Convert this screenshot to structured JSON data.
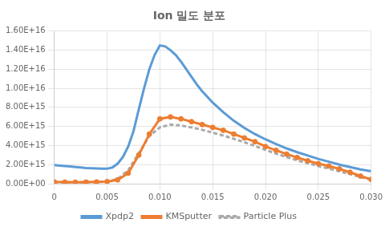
{
  "chart_data": {
    "type": "line",
    "title": "Ion 밀도 분포",
    "xlim": [
      0,
      0.03
    ],
    "ylim": [
      0,
      1.6e+16
    ],
    "xticks": [
      0,
      0.005,
      {
        "value": 0.01,
        "label": "0.010"
      },
      0.015,
      {
        "value": 0.02,
        "label": "0.020"
      },
      0.025,
      {
        "value": 0.03,
        "label": "0.030"
      }
    ],
    "yticks": [
      {
        "value": 0,
        "label": "0.00E+00"
      },
      {
        "value": 2000000000000000.0,
        "label": "2.00E+15"
      },
      {
        "value": 4000000000000000.0,
        "label": "4.00E+15"
      },
      {
        "value": 6000000000000000.0,
        "label": "6.00E+15"
      },
      {
        "value": 8000000000000000.0,
        "label": "8.00E+15"
      },
      {
        "value": 1e+16,
        "label": "1.00E+16"
      },
      {
        "value": 1.2e+16,
        "label": "1.20E+16"
      },
      {
        "value": 1.4e+16,
        "label": "1.40E+16"
      },
      {
        "value": 1.6e+16,
        "label": "1.60E+16"
      }
    ],
    "grid": true,
    "legend": "bottom",
    "series": [
      {
        "name": "Xpdp2",
        "color": "#5b9bd5",
        "marker": "none",
        "line_style": "solid",
        "x": [
          0,
          0.0005,
          0.001,
          0.0015,
          0.002,
          0.0025,
          0.003,
          0.0035,
          0.004,
          0.0045,
          0.005,
          0.0055,
          0.006,
          0.0065,
          0.007,
          0.0075,
          0.008,
          0.0085,
          0.009,
          0.0095,
          0.01,
          0.0105,
          0.011,
          0.0115,
          0.012,
          0.0125,
          0.013,
          0.0135,
          0.014,
          0.0145,
          0.015,
          0.016,
          0.017,
          0.018,
          0.019,
          0.02,
          0.021,
          0.022,
          0.023,
          0.024,
          0.025,
          0.026,
          0.027,
          0.028,
          0.029,
          0.03
        ],
        "values": [
          1950000000000000.0,
          1900000000000000.0,
          1850000000000000.0,
          1800000000000000.0,
          1750000000000000.0,
          1700000000000000.0,
          1650000000000000.0,
          1620000000000000.0,
          1600000000000000.0,
          1580000000000000.0,
          1570000000000000.0,
          1700000000000000.0,
          2100000000000000.0,
          2800000000000000.0,
          3900000000000000.0,
          5500000000000000.0,
          7800000000000000.0,
          1e+16,
          1.2e+16,
          1.35e+16,
          1.45e+16,
          1.44e+16,
          1.4e+16,
          1.35e+16,
          1.28e+16,
          1.2e+16,
          1.12e+16,
          1.04e+16,
          9700000000000000.0,
          9100000000000000.0,
          8500000000000000.0,
          7500000000000000.0,
          6600000000000000.0,
          5850000000000000.0,
          5200000000000000.0,
          4650000000000000.0,
          4150000000000000.0,
          3700000000000000.0,
          3300000000000000.0,
          2950000000000000.0,
          2600000000000000.0,
          2300000000000000.0,
          2000000000000000.0,
          1750000000000000.0,
          1500000000000000.0,
          1300000000000000.0
        ]
      },
      {
        "name": "KMSputter",
        "color": "#ed7d31",
        "marker": "circle",
        "line_style": "solid",
        "x": [
          0,
          0.001,
          0.002,
          0.003,
          0.004,
          0.005,
          0.006,
          0.007,
          0.008,
          0.009,
          0.01,
          0.011,
          0.012,
          0.013,
          0.014,
          0.015,
          0.016,
          0.017,
          0.018,
          0.019,
          0.02,
          0.021,
          0.022,
          0.023,
          0.024,
          0.025,
          0.026,
          0.027,
          0.028,
          0.029,
          0.03
        ],
        "values": [
          180000000000000.0,
          160000000000000.0,
          150000000000000.0,
          160000000000000.0,
          180000000000000.0,
          220000000000000.0,
          400000000000000.0,
          1100000000000000.0,
          3000000000000000.0,
          5200000000000000.0,
          6800000000000000.0,
          7000000000000000.0,
          6800000000000000.0,
          6500000000000000.0,
          6200000000000000.0,
          5900000000000000.0,
          5600000000000000.0,
          5200000000000000.0,
          4800000000000000.0,
          4400000000000000.0,
          3900000000000000.0,
          3500000000000000.0,
          3100000000000000.0,
          2750000000000000.0,
          2400000000000000.0,
          2100000000000000.0,
          1850000000000000.0,
          1550000000000000.0,
          1200000000000000.0,
          800000000000000.0,
          450000000000000.0
        ]
      },
      {
        "name": "Particle Plus",
        "color": "#aaaaaa",
        "marker": "none",
        "line_style": "dashed",
        "x": [
          0,
          0.001,
          0.002,
          0.003,
          0.004,
          0.005,
          0.006,
          0.007,
          0.008,
          0.009,
          0.01,
          0.011,
          0.012,
          0.013,
          0.014,
          0.015,
          0.016,
          0.017,
          0.018,
          0.019,
          0.02,
          0.021,
          0.022,
          0.023,
          0.024,
          0.025,
          0.026,
          0.027,
          0.028,
          0.029,
          0.03
        ],
        "values": [
          150000000000000.0,
          140000000000000.0,
          140000000000000.0,
          150000000000000.0,
          170000000000000.0,
          220000000000000.0,
          500000000000000.0,
          1400000000000000.0,
          3200000000000000.0,
          5000000000000000.0,
          5900000000000000.0,
          6200000000000000.0,
          6100000000000000.0,
          5900000000000000.0,
          5650000000000000.0,
          5350000000000000.0,
          5050000000000000.0,
          4700000000000000.0,
          4350000000000000.0,
          3950000000000000.0,
          3550000000000000.0,
          3150000000000000.0,
          2800000000000000.0,
          2450000000000000.0,
          2150000000000000.0,
          1850000000000000.0,
          1580000000000000.0,
          1300000000000000.0,
          1000000000000000.0,
          700000000000000.0,
          420000000000000.0
        ]
      }
    ]
  }
}
